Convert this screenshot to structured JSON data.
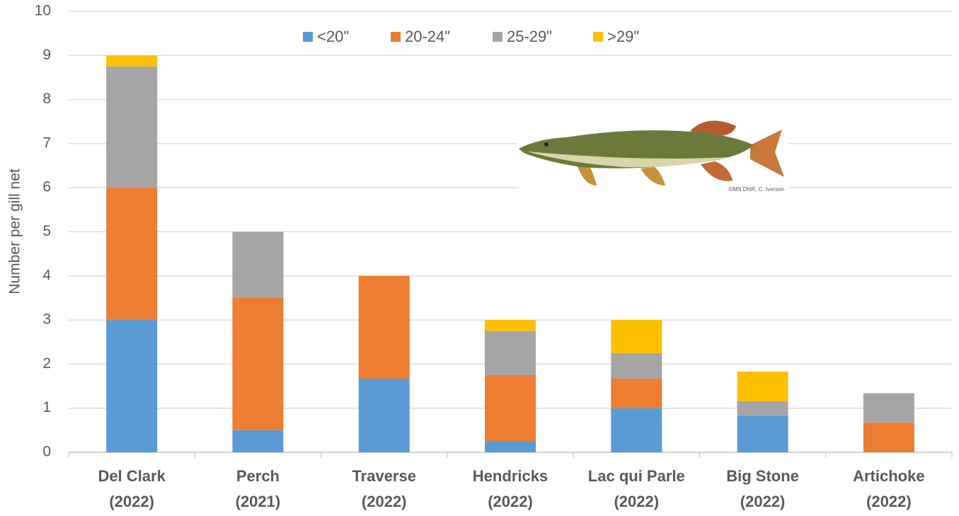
{
  "chart_data": {
    "type": "stacked_bar",
    "y_label": "Number per gill net",
    "categories": [
      [
        "Del Clark",
        "(2022)"
      ],
      [
        "Perch",
        "(2021)"
      ],
      [
        "Traverse",
        "(2022)"
      ],
      [
        "Hendricks",
        "(2022)"
      ],
      [
        "Lac qui Parle",
        "(2022)"
      ],
      [
        "Big Stone",
        "(2022)"
      ],
      [
        "Artichoke",
        "(2022)"
      ]
    ],
    "series": [
      {
        "name": "<20\"",
        "color": "#5b9bd5",
        "values": [
          3,
          0.5,
          1.67,
          0.25,
          1,
          0.83,
          0
        ]
      },
      {
        "name": "20-24\"",
        "color": "#ed7d31",
        "values": [
          3,
          3,
          2.33,
          1.5,
          0.67,
          0,
          0.67
        ]
      },
      {
        "name": "25-29\"",
        "color": "#a5a5a5",
        "values": [
          2.75,
          1.5,
          0,
          1,
          0.58,
          0.33,
          0.67
        ]
      },
      {
        "name": ">29\"",
        "color": "#ffc000",
        "values": [
          0.25,
          0,
          0,
          0.25,
          0.75,
          0.67,
          0
        ]
      }
    ],
    "ylim": [
      0,
      10
    ],
    "yticks": [
      0,
      1,
      2,
      3,
      4,
      5,
      6,
      7,
      8,
      9,
      10
    ],
    "grid": true,
    "legend": "top"
  },
  "image_credit": "©MN DNR, C. Iverson"
}
